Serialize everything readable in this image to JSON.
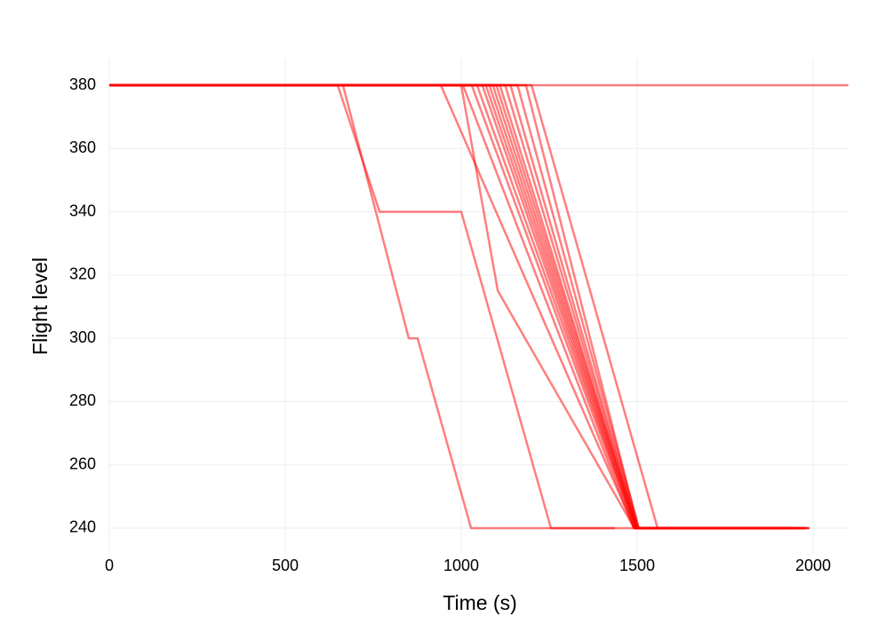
{
  "chart_data": {
    "type": "line",
    "x_label": "Time (s)",
    "y_label": "Flight level",
    "xlim": [
      0,
      2100
    ],
    "ylim": [
      232,
      388
    ],
    "xticks": [
      0,
      500,
      1000,
      1500,
      2000
    ],
    "yticks": [
      240,
      260,
      280,
      300,
      320,
      340,
      360,
      380
    ],
    "grid": true,
    "color": "#ff0000",
    "opacity": 0.5,
    "series": [
      {
        "x": [
          0,
          2100
        ],
        "values": [
          380,
          380
        ]
      },
      {
        "x": [
          0,
          649,
          768,
          1000,
          1255,
          1437
        ],
        "values": [
          380,
          380,
          340,
          340,
          240,
          240
        ]
      },
      {
        "x": [
          0,
          664,
          851,
          876,
          1028,
          1500
        ],
        "values": [
          380,
          380,
          300,
          300,
          240,
          240
        ]
      },
      {
        "x": [
          0,
          942,
          1492,
          1980
        ],
        "values": [
          380,
          380,
          240,
          240
        ]
      },
      {
        "x": [
          0,
          1000,
          1104,
          1492,
          1950
        ],
        "values": [
          380,
          380,
          315,
          240,
          240
        ]
      },
      {
        "x": [
          0,
          1005,
          1490,
          1900
        ],
        "values": [
          380,
          380,
          240,
          240
        ]
      },
      {
        "x": [
          0,
          1030,
          1493,
          1940
        ],
        "values": [
          380,
          380,
          240,
          240
        ]
      },
      {
        "x": [
          0,
          1045,
          1495,
          1960
        ],
        "values": [
          380,
          380,
          240,
          240
        ]
      },
      {
        "x": [
          0,
          1060,
          1495,
          1920
        ],
        "values": [
          380,
          380,
          240,
          240
        ]
      },
      {
        "x": [
          0,
          1070,
          1497,
          1980
        ],
        "values": [
          380,
          380,
          240,
          240
        ]
      },
      {
        "x": [
          0,
          1080,
          1498,
          1950
        ],
        "values": [
          380,
          380,
          240,
          240
        ]
      },
      {
        "x": [
          0,
          1090,
          1499,
          1930
        ],
        "values": [
          380,
          380,
          240,
          240
        ]
      },
      {
        "x": [
          0,
          1100,
          1500,
          1970
        ],
        "values": [
          380,
          380,
          240,
          240
        ]
      },
      {
        "x": [
          0,
          1110,
          1500,
          1940
        ],
        "values": [
          380,
          380,
          240,
          240
        ]
      },
      {
        "x": [
          0,
          1125,
          1502,
          1985
        ],
        "values": [
          380,
          380,
          240,
          240
        ]
      },
      {
        "x": [
          0,
          1140,
          1503,
          1960
        ],
        "values": [
          380,
          380,
          240,
          240
        ]
      },
      {
        "x": [
          0,
          1160,
          1505,
          1950
        ],
        "values": [
          380,
          380,
          240,
          240
        ]
      },
      {
        "x": [
          0,
          1184,
          1503,
          1990
        ],
        "values": [
          380,
          380,
          240,
          240
        ]
      },
      {
        "x": [
          0,
          1200,
          1558,
          1990
        ],
        "values": [
          380,
          380,
          240,
          240
        ]
      }
    ]
  }
}
